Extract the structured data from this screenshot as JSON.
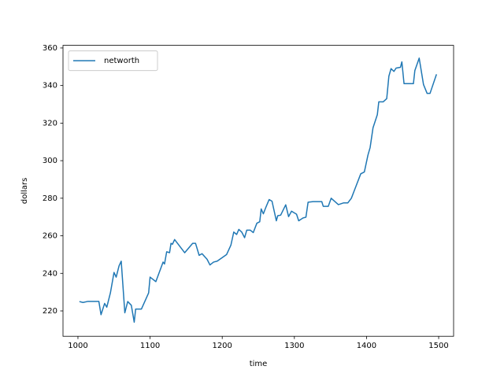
{
  "chart_data": {
    "type": "line",
    "xlabel": "time",
    "ylabel": "dollars",
    "x": [
      1002,
      1007,
      1014,
      1029,
      1032,
      1037,
      1040,
      1045,
      1050,
      1053,
      1057,
      1060,
      1065,
      1069,
      1074,
      1078,
      1080,
      1088,
      1098,
      1100,
      1108,
      1118,
      1120,
      1123,
      1127,
      1129,
      1131,
      1134,
      1148,
      1159,
      1163,
      1168,
      1172,
      1179,
      1183,
      1188,
      1193,
      1206,
      1212,
      1216,
      1220,
      1223,
      1227,
      1231,
      1234,
      1239,
      1243,
      1248,
      1252,
      1254,
      1257,
      1260,
      1265,
      1269,
      1275,
      1277,
      1281,
      1288,
      1292,
      1296,
      1303,
      1306,
      1312,
      1316,
      1319,
      1326,
      1338,
      1340,
      1347,
      1351,
      1361,
      1368,
      1374,
      1379,
      1384,
      1392,
      1397,
      1402,
      1405,
      1409,
      1415,
      1417,
      1423,
      1428,
      1431,
      1434,
      1438,
      1441,
      1447,
      1449,
      1452,
      1465,
      1467,
      1473,
      1479,
      1484,
      1488,
      1497
    ],
    "series": [
      {
        "name": "networth",
        "color": "#1f77b4",
        "values": [
          225,
          224.5,
          225.1,
          225.1,
          218,
          224,
          222,
          229.6,
          240.5,
          238,
          244,
          246.5,
          219,
          225,
          223,
          214,
          221,
          221,
          229.6,
          238,
          235.6,
          246,
          245,
          251.5,
          251,
          256,
          255.5,
          258,
          251,
          256,
          256,
          249.6,
          250.5,
          247.5,
          244.5,
          246,
          246.5,
          250,
          255,
          262,
          260.7,
          263.4,
          262,
          259,
          263,
          263,
          261.7,
          266.7,
          267.5,
          274.3,
          271.7,
          274.7,
          279.3,
          278.4,
          268,
          270.7,
          271,
          276.5,
          270.2,
          273.1,
          271.5,
          268,
          269.5,
          269.9,
          277.9,
          278.2,
          278.2,
          275.7,
          275.7,
          280,
          276.6,
          277.5,
          277.5,
          280,
          285,
          293,
          294,
          303,
          307,
          317.5,
          324.5,
          331.3,
          331.3,
          333,
          345,
          349,
          347.5,
          349.3,
          349.7,
          352.6,
          341,
          341,
          348,
          354.6,
          340.5,
          335.8,
          335.8,
          346
        ]
      }
    ],
    "xlim": [
      979.3,
      1520.7
    ],
    "xticks": [
      1000,
      1100,
      1200,
      1300,
      1400,
      1500
    ],
    "ylim": [
      206.5,
      361.4
    ],
    "yticks": [
      220,
      240,
      260,
      280,
      300,
      320,
      340,
      360
    ],
    "grid": false,
    "legend": "upper left"
  }
}
